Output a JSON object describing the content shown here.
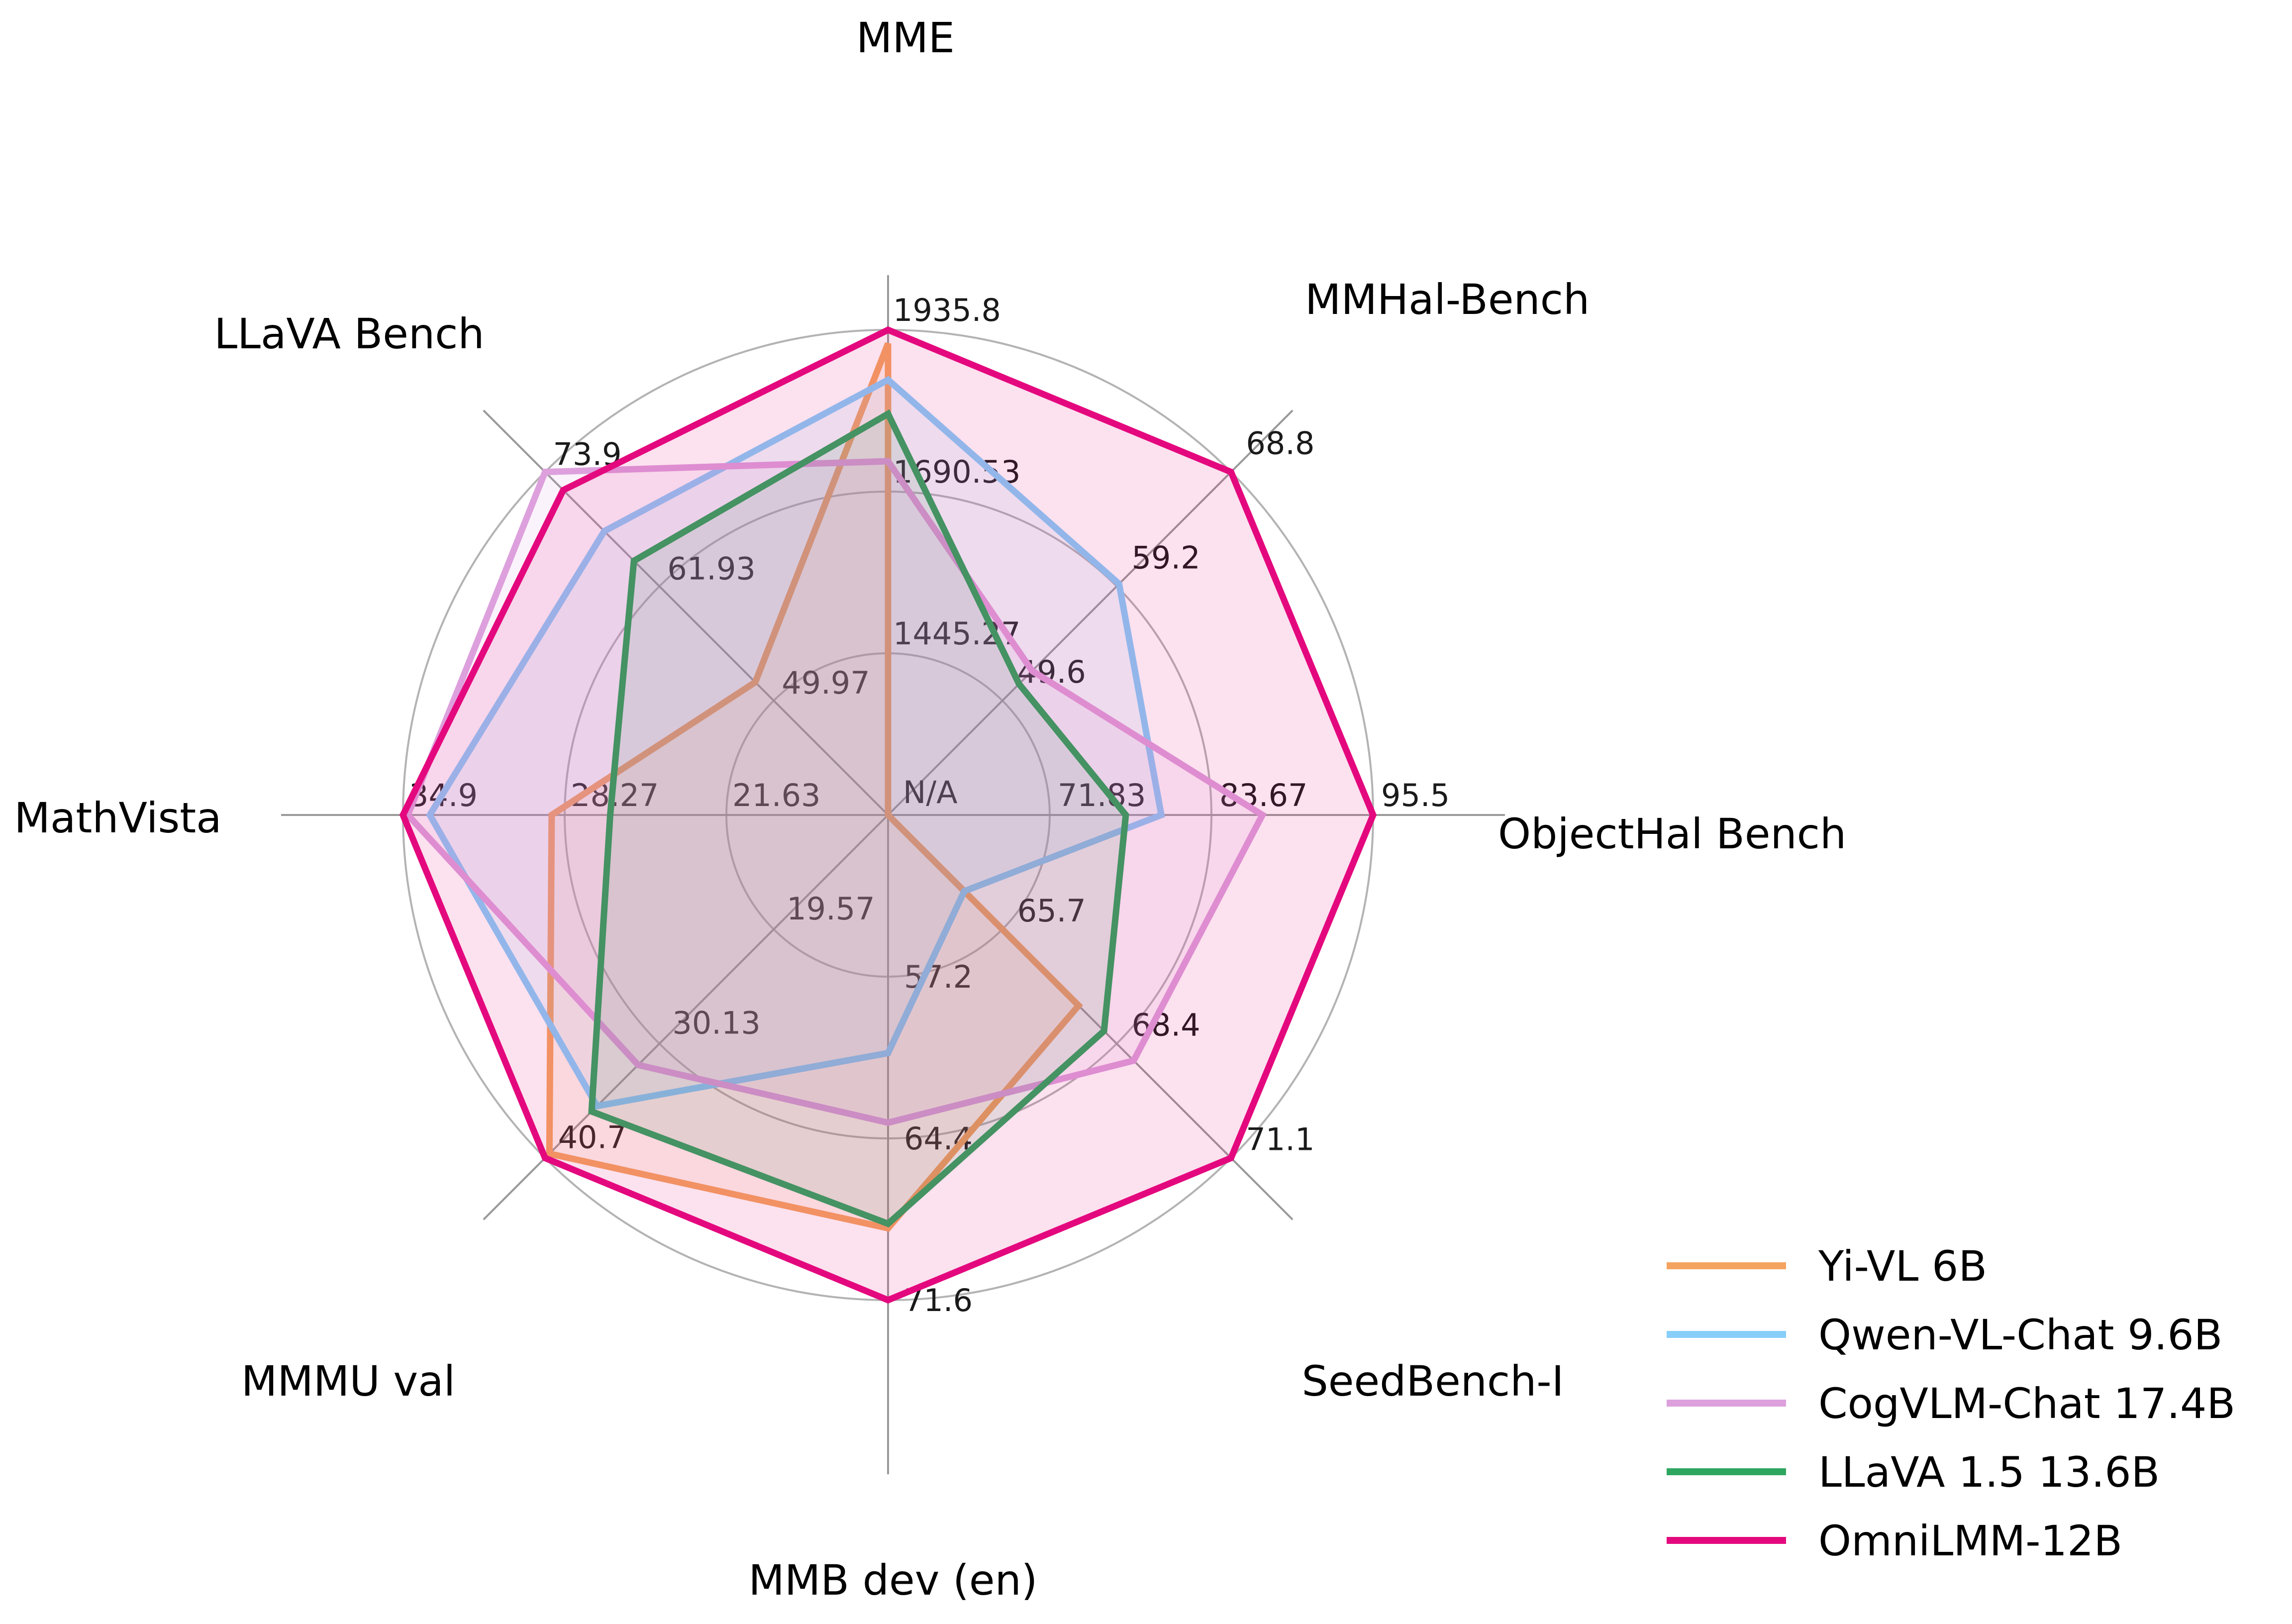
{
  "chart_data": {
    "type": "radar",
    "grid": true,
    "legend_position": "lower right",
    "fill_opacity": 0.12,
    "colors": {
      "background": "#ffffff",
      "grid_circle": "#b3b3b3",
      "spoke": "#9a9a9a",
      "tick_label": "#1a1a1a",
      "axis_title": "#000000",
      "legend_text": "#000000"
    },
    "axes": [
      {
        "title": "MME",
        "axis_min": 1200.0,
        "axis_max": 1935.8,
        "tick_labels": [
          "1445.27",
          "1690.53",
          "1935.8"
        ],
        "center_label": "N/A"
      },
      {
        "title": "MMHal-Bench",
        "axis_min": 40.0,
        "axis_max": 68.8,
        "tick_labels": [
          "49.6",
          "59.2",
          "68.8"
        ]
      },
      {
        "title": "ObjectHal Bench",
        "axis_min": 60.0,
        "axis_max": 95.5,
        "tick_labels": [
          "71.83",
          "83.67",
          "95.5"
        ]
      },
      {
        "title": "SeedBench-I",
        "axis_min": 63.0,
        "axis_max": 71.1,
        "tick_labels": [
          "65.7",
          "68.4",
          "71.1"
        ]
      },
      {
        "title": "MMB dev (en)",
        "axis_min": 50.0,
        "axis_max": 71.6,
        "tick_labels": [
          "57.2",
          "64.4",
          "71.6"
        ]
      },
      {
        "title": "MMMU val",
        "axis_min": 9.0,
        "axis_max": 40.7,
        "tick_labels": [
          "19.57",
          "30.13",
          "40.7"
        ]
      },
      {
        "title": "MathVista",
        "axis_min": 15.0,
        "axis_max": 34.9,
        "tick_labels": [
          "21.63",
          "28.27",
          "34.9"
        ]
      },
      {
        "title": "LLaVA Bench",
        "axis_min": 38.0,
        "axis_max": 73.9,
        "tick_labels": [
          "49.97",
          "61.93",
          "73.9"
        ]
      }
    ],
    "series": [
      {
        "name": "Yi-VL 6B",
        "color": "#F4A460",
        "values": [
          1915.1,
          null,
          null,
          67.5,
          68.4,
          40.3,
          28.8,
          51.9
        ]
      },
      {
        "name": "Qwen-VL-Chat 9.6B",
        "color": "#87CEFA",
        "values": [
          1860.0,
          59.4,
          80.0,
          64.8,
          60.6,
          35.9,
          33.8,
          67.7
        ]
      },
      {
        "name": "CogVLM-Chat 17.4B",
        "color": "#DDA0DD",
        "values": [
          1736.6,
          52.1,
          87.4,
          68.8,
          63.7,
          32.1,
          34.7,
          73.9
        ]
      },
      {
        "name": "LLaVA 1.5 13.6B",
        "color": "#2FA660",
        "values": [
          1808.4,
          51.0,
          77.4,
          68.1,
          68.2,
          36.4,
          26.4,
          64.6
        ]
      },
      {
        "name": "OmniLMM-12B",
        "color": "#E4087E",
        "values": [
          1935.8,
          68.8,
          95.5,
          71.1,
          71.6,
          40.7,
          34.9,
          72.0
        ]
      }
    ]
  }
}
